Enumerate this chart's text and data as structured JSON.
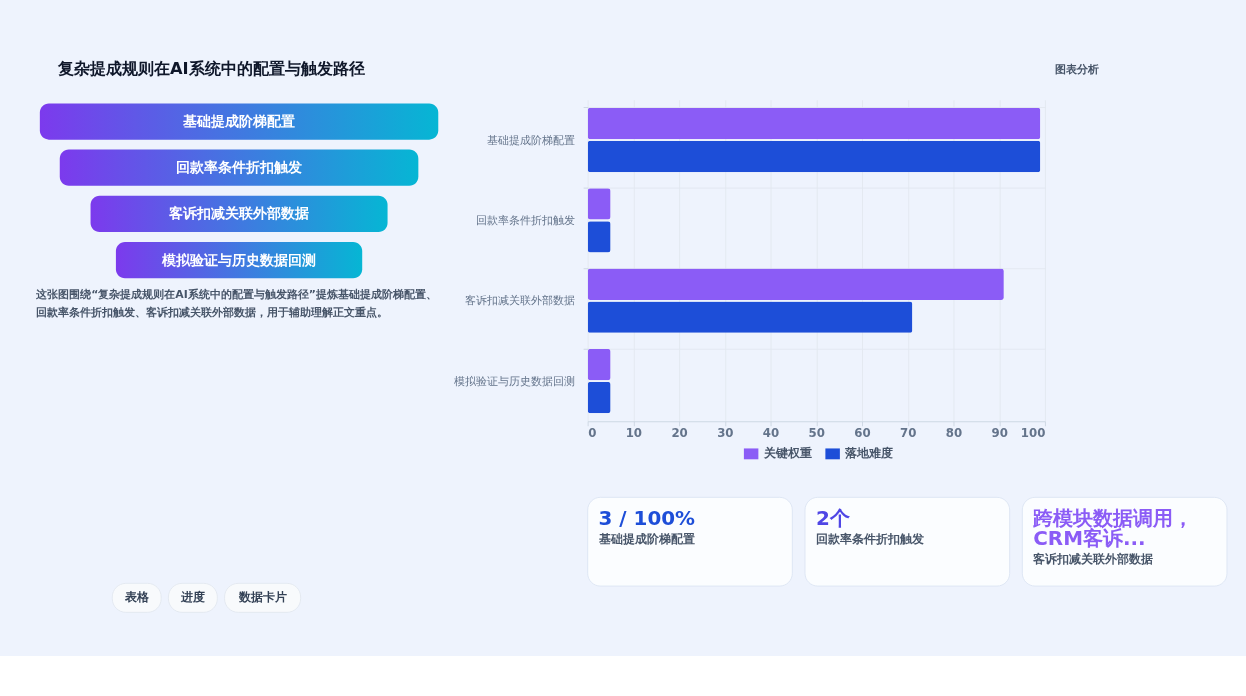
{
  "chart_data": {
    "type": "bar",
    "orientation": "horizontal",
    "title": "复杂提成规则在AI系统中的配置与触发路径",
    "categories": [
      "基础提成阶梯配置",
      "回款率条件折扣触发",
      "客诉扣减关联外部数据",
      "模拟验证与历史数据回测"
    ],
    "series": [
      {
        "name": "关键权重",
        "color": "#8b5cf6",
        "values": [
          99,
          5,
          91,
          5
        ]
      },
      {
        "name": "落地难度",
        "color": "#1d4ed8",
        "values": [
          99,
          5,
          71,
          5
        ]
      }
    ],
    "xlim": [
      0,
      100
    ],
    "xticks": [
      0,
      10,
      20,
      30,
      40,
      50,
      60,
      70,
      80,
      90,
      100
    ],
    "grid": true,
    "legend": "bottom",
    "annotations": [
      "图表分析",
      "基础提成阶梯配置",
      "回款率条件折扣触发",
      "客诉扣减关联外部数据",
      "模拟验证与历史数据回测",
      "这张图围绕“复杂提成规则在AI系统中的配置与触发路径”提炼基础提成阶梯配置、回款率条件折扣触发、客诉扣减关联外部数据，用于辅助理解正文重点。",
      "3 / 100%",
      "基础提成阶梯配置",
      "2个",
      "回款率条件折扣触发",
      "跨模块数据调用，CRM客诉...",
      "客诉扣减关联外部数据",
      "表格",
      "进度",
      "数据卡片"
    ]
  }
}
